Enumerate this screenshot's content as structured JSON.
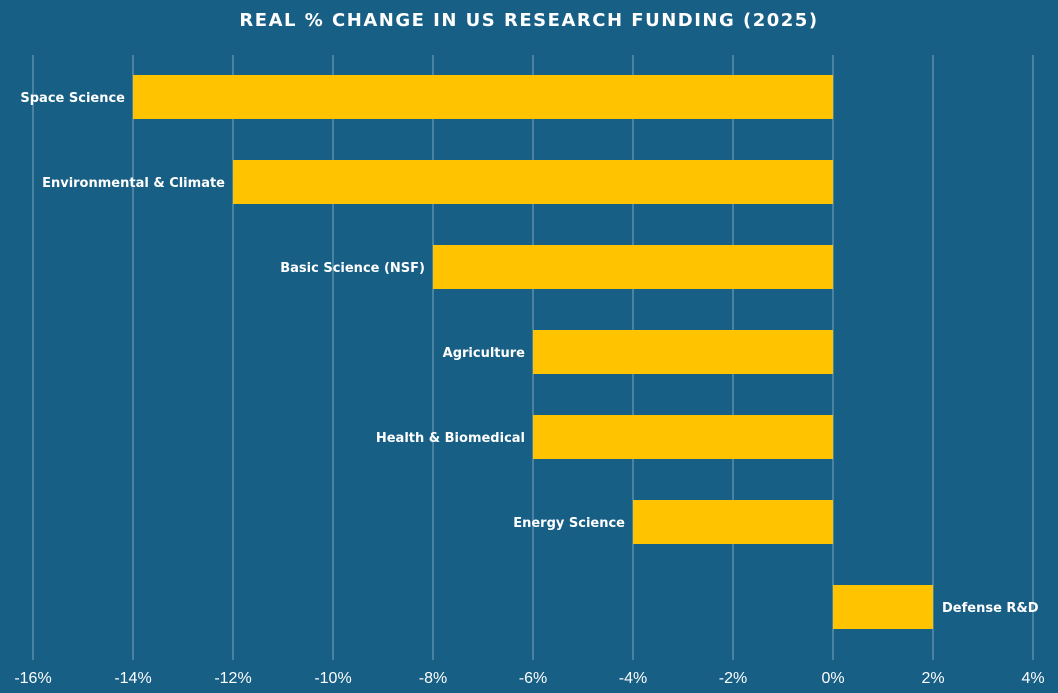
{
  "chart_data": {
    "type": "bar",
    "orientation": "horizontal",
    "title": "REAL % CHANGE IN US RESEARCH FUNDING (2025)",
    "xlabel": "",
    "ylabel": "",
    "categories": [
      "Space Science",
      "Environmental & Climate",
      "Basic Science (NSF)",
      "Agriculture",
      "Health & Biomedical",
      "Energy Science",
      "Defense R&D"
    ],
    "values": [
      -14,
      -12,
      -8,
      -6,
      -6,
      -4,
      2
    ],
    "xlim": [
      -16,
      4
    ],
    "xticks": [
      -16,
      -14,
      -12,
      -10,
      -8,
      -6,
      -4,
      -2,
      0,
      2,
      4
    ],
    "tick_format": "%",
    "grid": "vertical",
    "legend": "none",
    "colors": {
      "background": "#175f85",
      "bar": "#ffc300",
      "text": "#ffffff",
      "grid": "#9fbdd0"
    }
  }
}
